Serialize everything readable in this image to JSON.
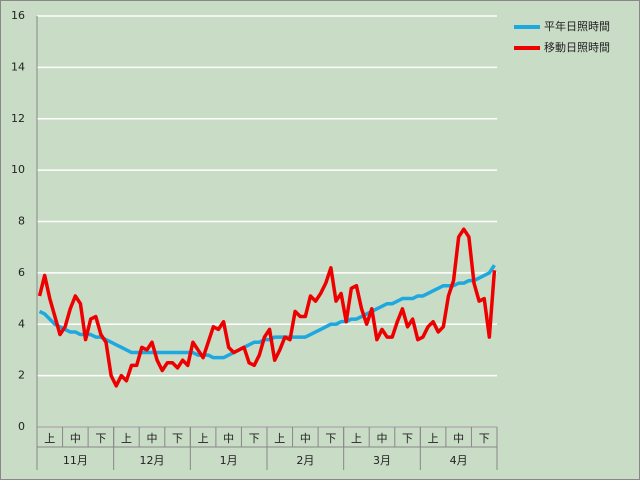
{
  "chart_data": {
    "type": "line",
    "categories": [
      null,
      null,
      "上",
      null,
      null,
      null,
      null,
      "中",
      null,
      null,
      null,
      null,
      "下",
      null,
      null,
      null,
      null,
      "上",
      null,
      null,
      null,
      null,
      "中",
      null,
      null,
      null,
      null,
      "下",
      null,
      null,
      null,
      null,
      "上",
      null,
      null,
      null,
      null,
      "中",
      null,
      null,
      null,
      null,
      "下",
      null,
      null,
      null,
      null,
      "上",
      null,
      null,
      null,
      null,
      "中",
      null,
      null,
      null,
      null,
      "下",
      null,
      null,
      null,
      null,
      "上",
      null,
      null,
      null,
      null,
      "中",
      null,
      null,
      null,
      null,
      "下",
      null,
      null,
      null,
      null,
      "上",
      null,
      null,
      null,
      null,
      "中",
      null,
      null,
      null,
      null,
      "下",
      null,
      null
    ],
    "months": [
      "11月",
      "12月",
      "1月",
      "2月",
      "3月",
      "4月"
    ],
    "series": [
      {
        "name": "平年日照時間",
        "color": "#1ea8e0",
        "values": [
          4.5,
          4.4,
          4.2,
          4.0,
          3.9,
          3.8,
          3.7,
          3.7,
          3.6,
          3.6,
          3.6,
          3.5,
          3.5,
          3.4,
          3.3,
          3.2,
          3.1,
          3.0,
          2.9,
          2.9,
          2.9,
          2.9,
          2.9,
          2.9,
          2.9,
          2.9,
          2.9,
          2.9,
          2.9,
          2.9,
          2.9,
          2.8,
          2.8,
          2.8,
          2.7,
          2.7,
          2.7,
          2.8,
          2.9,
          3.0,
          3.1,
          3.2,
          3.3,
          3.3,
          3.4,
          3.4,
          3.5,
          3.5,
          3.5,
          3.5,
          3.5,
          3.5,
          3.5,
          3.6,
          3.7,
          3.8,
          3.9,
          4.0,
          4.0,
          4.1,
          4.1,
          4.2,
          4.2,
          4.3,
          4.4,
          4.5,
          4.6,
          4.7,
          4.8,
          4.8,
          4.9,
          5.0,
          5.0,
          5.0,
          5.1,
          5.1,
          5.2,
          5.3,
          5.4,
          5.5,
          5.5,
          5.5,
          5.6,
          5.6,
          5.7,
          5.7,
          5.8,
          5.9,
          6.0,
          6.3
        ]
      },
      {
        "name": "移動日照時間",
        "color": "#ee0000",
        "values": [
          5.1,
          5.9,
          5.0,
          4.3,
          3.6,
          3.9,
          4.6,
          5.1,
          4.8,
          3.4,
          4.2,
          4.3,
          3.6,
          3.3,
          2.0,
          1.6,
          2.0,
          1.8,
          2.4,
          2.4,
          3.1,
          3.0,
          3.3,
          2.6,
          2.2,
          2.5,
          2.5,
          2.3,
          2.6,
          2.4,
          3.3,
          3.0,
          2.7,
          3.3,
          3.9,
          3.8,
          4.1,
          3.1,
          2.9,
          3.0,
          3.1,
          2.5,
          2.4,
          2.8,
          3.5,
          3.8,
          2.6,
          3.0,
          3.5,
          3.4,
          4.5,
          4.3,
          4.3,
          5.1,
          4.9,
          5.2,
          5.6,
          6.2,
          4.9,
          5.2,
          4.1,
          5.4,
          5.5,
          4.6,
          4.0,
          4.6,
          3.4,
          3.8,
          3.5,
          3.5,
          4.1,
          4.6,
          3.9,
          4.2,
          3.4,
          3.5,
          3.9,
          4.1,
          3.7,
          3.9,
          5.1,
          5.7,
          7.4,
          7.7,
          7.4,
          5.6,
          4.9,
          5.0,
          3.5,
          6.1
        ]
      }
    ],
    "ylim": [
      0,
      16
    ],
    "yticks": [
      0,
      2,
      4,
      6,
      8,
      10,
      12,
      14,
      16
    ],
    "grid": true
  }
}
